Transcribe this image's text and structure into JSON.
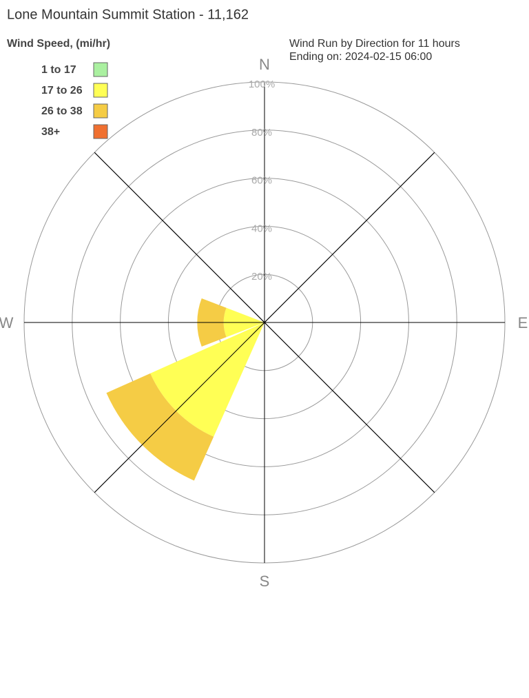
{
  "chart_data": {
    "type": "windrose",
    "title": "Lone Mountain Summit Station - 11,162",
    "legend_title": "Wind Speed, (mi/hr)",
    "subtitle": [
      "Wind Run by Direction for 11 hours",
      "Ending on: 2024-02-15 06:00"
    ],
    "categories": [
      "N",
      null,
      "E",
      null,
      "S",
      null,
      "W",
      null
    ],
    "series": [
      {
        "name": "1 to 17",
        "color": "#aaf0a0",
        "values": [
          0,
          0,
          0,
          0,
          0,
          0,
          0,
          0
        ]
      },
      {
        "name": "17 to 26",
        "color": "#ffff55",
        "values": [
          0,
          0,
          0,
          0,
          0,
          52,
          17,
          0
        ]
      },
      {
        "name": "26 to 38",
        "color": "#f5cc45",
        "values": [
          0,
          0,
          0,
          0,
          0,
          20,
          11,
          0
        ]
      },
      {
        "name": "38+",
        "color": "#f07030",
        "values": [
          0,
          0,
          0,
          0,
          0,
          0,
          0,
          0
        ]
      }
    ],
    "rlim": [
      0,
      100
    ],
    "rticks": [
      {
        "value": 20,
        "label": "20%"
      },
      {
        "value": 40,
        "label": "40%"
      },
      {
        "value": 60,
        "label": "60%"
      },
      {
        "value": 80,
        "label": "80%"
      },
      {
        "value": 100,
        "label": "100%"
      }
    ]
  }
}
